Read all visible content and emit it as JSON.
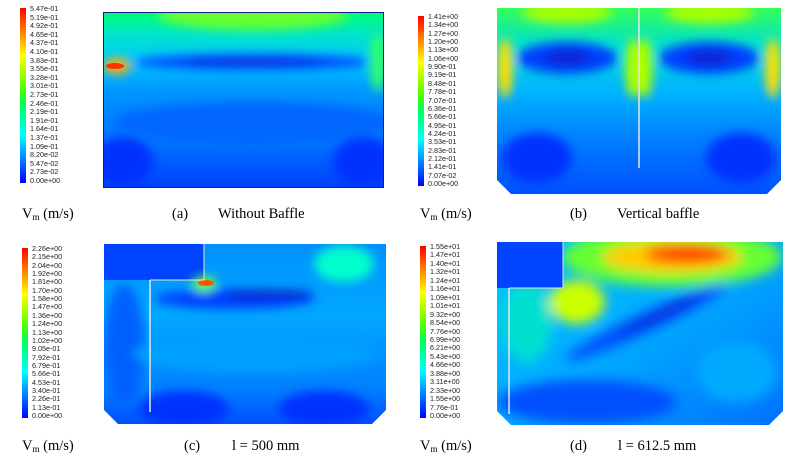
{
  "colormap": [
    "#0000ff",
    "#0055ff",
    "#00aaff",
    "#00ffff",
    "#00ffaa",
    "#00ff55",
    "#55ff00",
    "#aaff00",
    "#ffff00",
    "#ffaa00",
    "#ff5500",
    "#ff0000"
  ],
  "panels": [
    {
      "id": "a",
      "caption_label": "(a)",
      "caption_title": "Without Baffle",
      "vm_symbol": "V",
      "vm_sub": "m",
      "vm_unit": "(m/s)",
      "ticks": [
        "5.47e-01",
        "5.19e-01",
        "4.92e-01",
        "4.65e-01",
        "4.37e-01",
        "4.10e-01",
        "3.83e-01",
        "3.55e-01",
        "3.28e-01",
        "3.01e-01",
        "2.73e-01",
        "2.46e-01",
        "2.19e-01",
        "1.91e-01",
        "1.64e-01",
        "1.37e-01",
        "1.09e-01",
        "8.20e-02",
        "5.47e-02",
        "2.73e-02",
        "0.00e+00"
      ]
    },
    {
      "id": "b",
      "caption_label": "(b)",
      "caption_title": "Vertical baffle",
      "vm_symbol": "V",
      "vm_sub": "m",
      "vm_unit": "(m/s)",
      "ticks": [
        "1.41e+00",
        "1.34e+00",
        "1.27e+00",
        "1.20e+00",
        "1.13e+00",
        "1.06e+00",
        "9.90e-01",
        "9.19e-01",
        "8.48e-01",
        "7.78e-01",
        "7.07e-01",
        "6.36e-01",
        "5.66e-01",
        "4.95e-01",
        "4.24e-01",
        "3.53e-01",
        "2.83e-01",
        "2.12e-01",
        "1.41e-01",
        "7.07e-02",
        "0.00e+00"
      ]
    },
    {
      "id": "c",
      "caption_label": "(c)",
      "caption_title": "l = 500 mm",
      "vm_symbol": "V",
      "vm_sub": "m",
      "vm_unit": "(m/s)",
      "ticks": [
        "2.26e+00",
        "2.15e+00",
        "2.04e+00",
        "1.92e+00",
        "1.81e+00",
        "1.70e+00",
        "1.58e+00",
        "1.47e+00",
        "1.36e+00",
        "1.24e+00",
        "1.13e+00",
        "1.02e+00",
        "9.05e-01",
        "7.92e-01",
        "6.79e-01",
        "5.66e-01",
        "4.53e-01",
        "3.40e-01",
        "2.26e-01",
        "1.13e-01",
        "0.00e+00"
      ]
    },
    {
      "id": "d",
      "caption_label": "(d)",
      "caption_title": "l = 612.5 mm",
      "vm_symbol": "V",
      "vm_sub": "m",
      "vm_unit": "(m/s)",
      "ticks": [
        "1.55e+01",
        "1.47e+01",
        "1.40e+01",
        "1.32e+01",
        "1.24e+01",
        "1.16e+01",
        "1.09e+01",
        "1.01e+01",
        "9.32e+00",
        "8.54e+00",
        "7.76e+00",
        "6.99e+00",
        "6.21e+00",
        "5.43e+00",
        "4.66e+00",
        "3.88e+00",
        "3.11e+00",
        "2.33e+00",
        "1.55e+00",
        "7.76e-01",
        "0.00e+00"
      ]
    }
  ]
}
